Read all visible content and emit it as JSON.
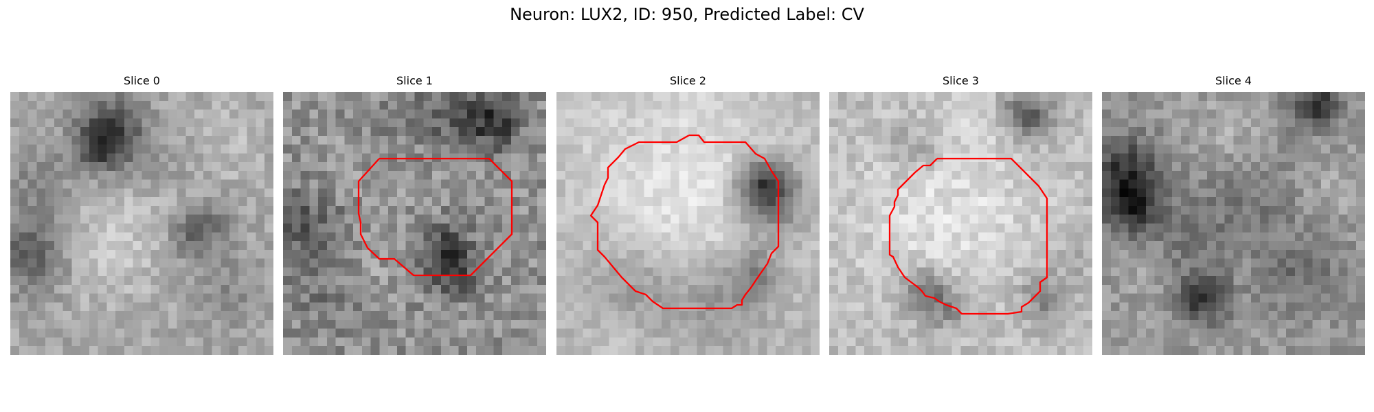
{
  "figure": {
    "title": "Neuron: LUX2, ID: 950, Predicted Label: CV"
  },
  "colors": {
    "outline": "#ff0000"
  },
  "panels": [
    {
      "title": "Slice 0",
      "has_outline": false
    },
    {
      "title": "Slice 1",
      "has_outline": true
    },
    {
      "title": "Slice 2",
      "has_outline": true
    },
    {
      "title": "Slice 3",
      "has_outline": true
    },
    {
      "title": "Slice 4",
      "has_outline": false
    }
  ]
}
